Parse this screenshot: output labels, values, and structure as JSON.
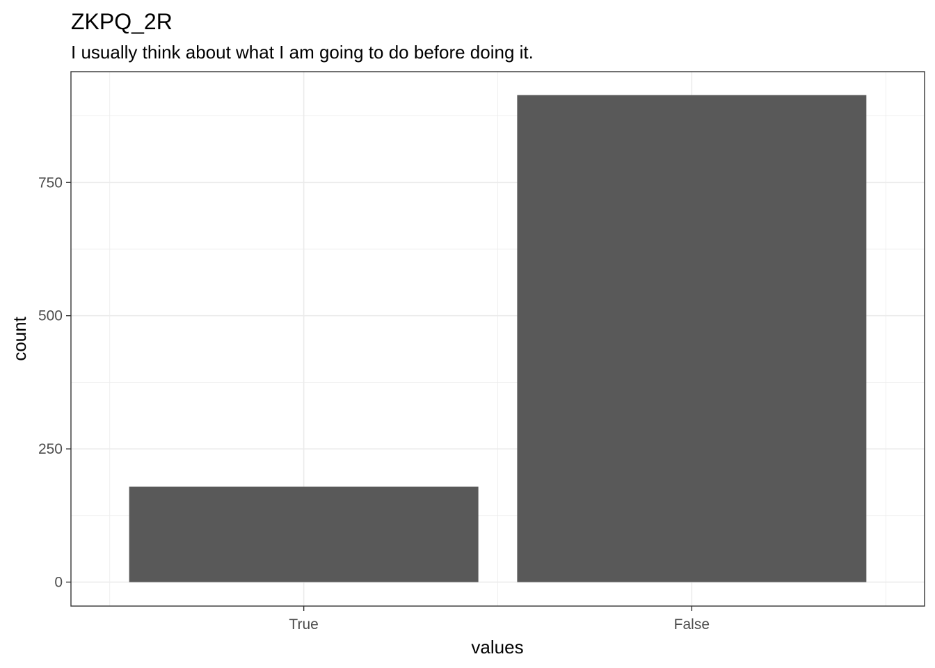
{
  "chart_data": {
    "type": "bar",
    "title": "ZKPQ_2R",
    "subtitle": "I usually think about what I am going to do before doing it.",
    "xlabel": "values",
    "ylabel": "count",
    "categories": [
      "True",
      "False"
    ],
    "values": [
      179,
      914
    ],
    "ylim": [
      -45,
      958
    ],
    "yticks": [
      0,
      250,
      500,
      750
    ],
    "ytick_labels": [
      "0",
      "250",
      "500",
      "750"
    ],
    "grid": true,
    "bar_color": "#595959",
    "grid_color": "#ebebeb",
    "panel_border_color": "#333333"
  }
}
